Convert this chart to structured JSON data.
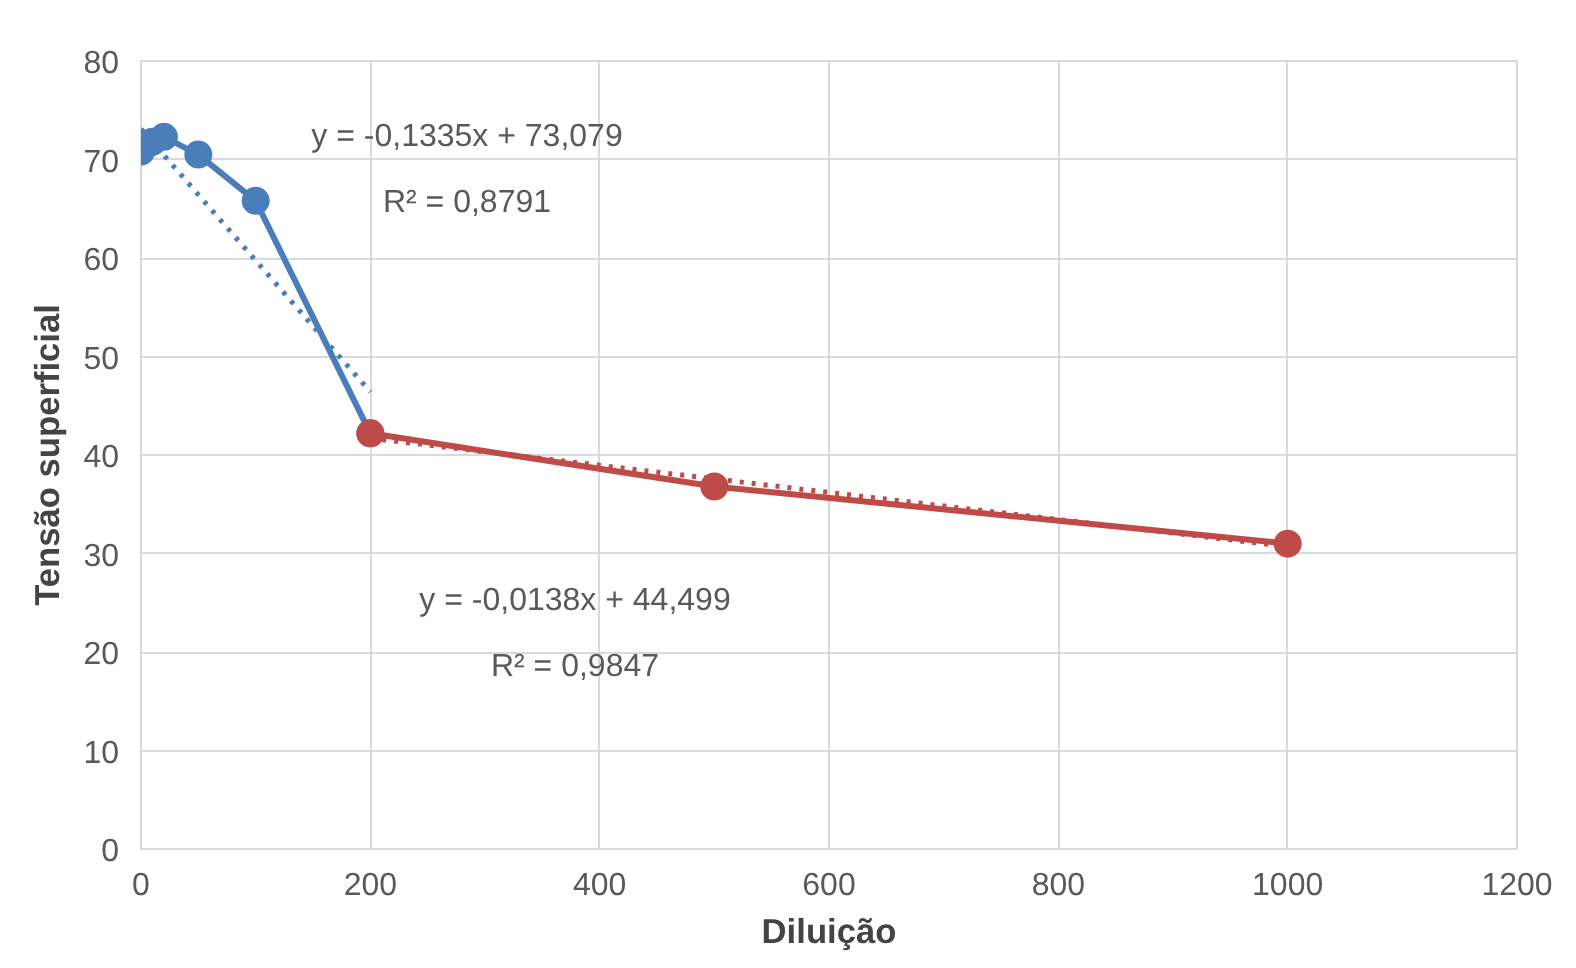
{
  "chart_data": {
    "type": "line",
    "xlabel": "Diluição",
    "ylabel": "Tensão superficial",
    "xlim": [
      0,
      1200
    ],
    "ylim": [
      0,
      80
    ],
    "xticks": [
      0,
      200,
      400,
      600,
      800,
      1000,
      1200
    ],
    "yticks": [
      0,
      10,
      20,
      30,
      40,
      50,
      60,
      70,
      80
    ],
    "grid": true,
    "series": [
      {
        "color": "#4a7ebb",
        "x": [
          0,
          5,
          10,
          20,
          50,
          100,
          200
        ],
        "values": [
          70.8,
          71.5,
          71.8,
          72.3,
          70.5,
          65.8,
          42.2
        ],
        "marker": "circle",
        "line_style": "solid"
      },
      {
        "color": "#be4b48",
        "x": [
          200,
          500,
          1000
        ],
        "values": [
          42.2,
          36.8,
          31
        ],
        "marker": "circle",
        "line_style": "solid"
      },
      {
        "color": "#4a7ebb",
        "x": [
          0,
          200
        ],
        "values": [
          73.1,
          46.4
        ],
        "marker": "none",
        "line_style": "dotted"
      },
      {
        "color": "#be4b48",
        "x": [
          200,
          1000
        ],
        "values": [
          41.7,
          30.7
        ],
        "marker": "none",
        "line_style": "dotted"
      }
    ],
    "annotations": [
      "y = -0,1335x + 73,079",
      "R² = 0,8791",
      "y = -0,0138x + 44,499",
      "R² = 0,9847"
    ]
  }
}
